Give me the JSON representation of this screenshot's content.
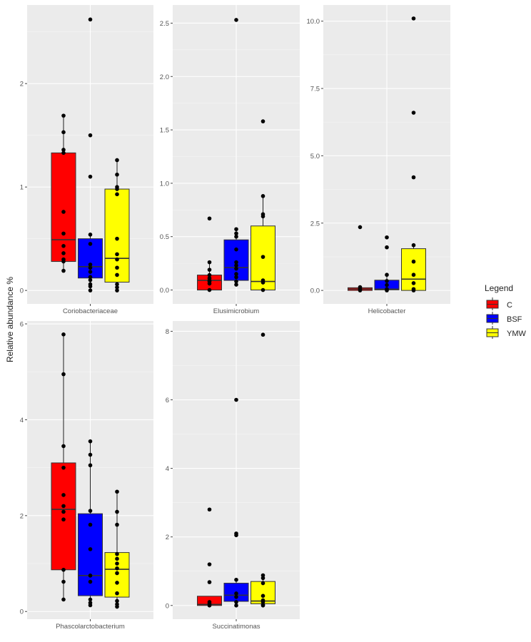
{
  "chart_data": {
    "type": "boxplot",
    "ylabel": "Relative abundance %",
    "legend": {
      "title": "Legend",
      "position": "right",
      "entries": [
        {
          "label": "C",
          "color": "#ff0000"
        },
        {
          "label": "BSF",
          "color": "#0000ff"
        },
        {
          "label": "YMW",
          "color": "#ffff00"
        }
      ]
    },
    "panels": [
      {
        "title": "Coriobacteriaceae",
        "ylim": [
          -0.13,
          2.76
        ],
        "ticks": [
          "0",
          "1",
          "2"
        ],
        "tick_values": [
          0,
          1,
          2
        ],
        "groups": [
          {
            "name": "C",
            "q1": 0.28,
            "median": 0.49,
            "q3": 1.33,
            "whisker_low": 0.19,
            "whisker_high": 1.69,
            "points": [
              1.69,
              1.53,
              1.36,
              1.33,
              0.76,
              0.55,
              0.43,
              0.36,
              0.3,
              0.28,
              0.19
            ]
          },
          {
            "name": "BSF",
            "q1": 0.12,
            "median": 0.23,
            "q3": 0.5,
            "whisker_low": 0,
            "whisker_high": 0.54,
            "points": [
              2.62,
              1.5,
              1.1,
              0.54,
              0.45,
              0.25,
              0.22,
              0.18,
              0.13,
              0.1,
              0.06,
              0.04,
              0
            ]
          },
          {
            "name": "YMW",
            "q1": 0.08,
            "median": 0.31,
            "q3": 0.98,
            "whisker_low": 0,
            "whisker_high": 1.26,
            "points": [
              1.26,
              1.12,
              1.0,
              0.98,
              0.93,
              0.5,
              0.35,
              0.3,
              0.22,
              0.15,
              0.06,
              0.03,
              0
            ]
          }
        ]
      },
      {
        "title": "Elusimicrobium",
        "ylim": [
          -0.13,
          2.67
        ],
        "ticks": [
          "0.0",
          "0.5",
          "1.0",
          "1.5",
          "2.0",
          "2.5"
        ],
        "tick_values": [
          0,
          0.5,
          1,
          1.5,
          2,
          2.5
        ],
        "groups": [
          {
            "name": "C",
            "q1": 0,
            "median": 0.09,
            "q3": 0.14,
            "whisker_low": 0,
            "whisker_high": 0.26,
            "points": [
              0.67,
              0.26,
              0.19,
              0.14,
              0.11,
              0.09,
              0.08,
              0.06,
              0
            ]
          },
          {
            "name": "BSF",
            "q1": 0.09,
            "median": 0.21,
            "q3": 0.47,
            "whisker_low": 0.05,
            "whisker_high": 0.57,
            "points": [
              2.53,
              0.57,
              0.53,
              0.5,
              0.38,
              0.26,
              0.23,
              0.2,
              0.15,
              0.12,
              0.08,
              0.05
            ]
          },
          {
            "name": "YMW",
            "q1": 0,
            "median": 0.08,
            "q3": 0.6,
            "whisker_low": 0,
            "whisker_high": 0.88,
            "points": [
              1.58,
              0.88,
              0.71,
              0.69,
              0.31,
              0.09,
              0.07,
              0
            ]
          }
        ]
      },
      {
        "title": "Helicobacter",
        "ylim": [
          -0.5,
          10.6
        ],
        "ticks": [
          "0.0",
          "2.5",
          "5.0",
          "7.5",
          "10.0"
        ],
        "tick_values": [
          0,
          2.5,
          5,
          7.5,
          10
        ],
        "groups": [
          {
            "name": "C",
            "q1": 0,
            "median": 0.05,
            "q3": 0.1,
            "whisker_low": 0,
            "whisker_high": 0.15,
            "points": [
              2.35,
              0.12,
              0.05,
              0
            ]
          },
          {
            "name": "BSF",
            "q1": 0.02,
            "median": 0.05,
            "q3": 0.38,
            "whisker_low": 0,
            "whisker_high": 0.58,
            "points": [
              1.97,
              1.6,
              0.58,
              0.35,
              0.2,
              0.05,
              0
            ]
          },
          {
            "name": "YMW",
            "q1": 0,
            "median": 0.42,
            "q3": 1.55,
            "whisker_low": 0,
            "whisker_high": 1.68,
            "points": [
              10.1,
              6.6,
              4.2,
              1.68,
              1.07,
              0.58,
              0.27,
              0.05,
              0
            ]
          }
        ]
      },
      {
        "title": "Phascolarctobacterium",
        "ylim": [
          -0.16,
          6.06
        ],
        "ticks": [
          "0",
          "2",
          "4",
          "6"
        ],
        "tick_values": [
          0,
          2,
          4,
          6
        ],
        "groups": [
          {
            "name": "C",
            "q1": 0.87,
            "median": 2.13,
            "q3": 3.1,
            "whisker_low": 0.25,
            "whisker_high": 5.78,
            "points": [
              5.78,
              4.95,
              3.45,
              3.0,
              2.43,
              2.2,
              2.08,
              1.92,
              0.87,
              0.62,
              0.25
            ]
          },
          {
            "name": "BSF",
            "q1": 0.33,
            "median": 0.75,
            "q3": 2.04,
            "whisker_low": 0.13,
            "whisker_high": 3.55,
            "points": [
              3.55,
              3.27,
              3.05,
              2.1,
              1.81,
              1.3,
              0.75,
              0.62,
              0.25,
              0.18,
              0.13
            ]
          },
          {
            "name": "YMW",
            "q1": 0.3,
            "median": 0.88,
            "q3": 1.23,
            "whisker_low": 0.1,
            "whisker_high": 2.5,
            "points": [
              2.5,
              2.08,
              1.81,
              1.2,
              1.1,
              1.0,
              0.9,
              0.8,
              0.6,
              0.38,
              0.22,
              0.15,
              0.1
            ]
          }
        ]
      },
      {
        "title": "Succinatimonas",
        "ylim": [
          -0.4,
          8.3
        ],
        "ticks": [
          "0",
          "2",
          "4",
          "6",
          "8"
        ],
        "tick_values": [
          0,
          2,
          4,
          6,
          8
        ],
        "groups": [
          {
            "name": "C",
            "q1": 0,
            "median": 0.03,
            "q3": 0.27,
            "whisker_low": 0,
            "whisker_high": 0.27,
            "points": [
              2.8,
              1.2,
              0.68,
              0.1,
              0.05,
              0
            ]
          },
          {
            "name": "BSF",
            "q1": 0.12,
            "median": 0.3,
            "q3": 0.65,
            "whisker_low": 0,
            "whisker_high": 0.75,
            "points": [
              6.0,
              2.1,
              2.05,
              0.75,
              0.35,
              0.25,
              0.1,
              0
            ]
          },
          {
            "name": "YMW",
            "q1": 0.05,
            "median": 0.13,
            "q3": 0.7,
            "whisker_low": 0,
            "whisker_high": 0.88,
            "points": [
              7.9,
              0.88,
              0.8,
              0.65,
              0.28,
              0.15,
              0.1,
              0.02,
              0
            ]
          }
        ]
      }
    ]
  }
}
